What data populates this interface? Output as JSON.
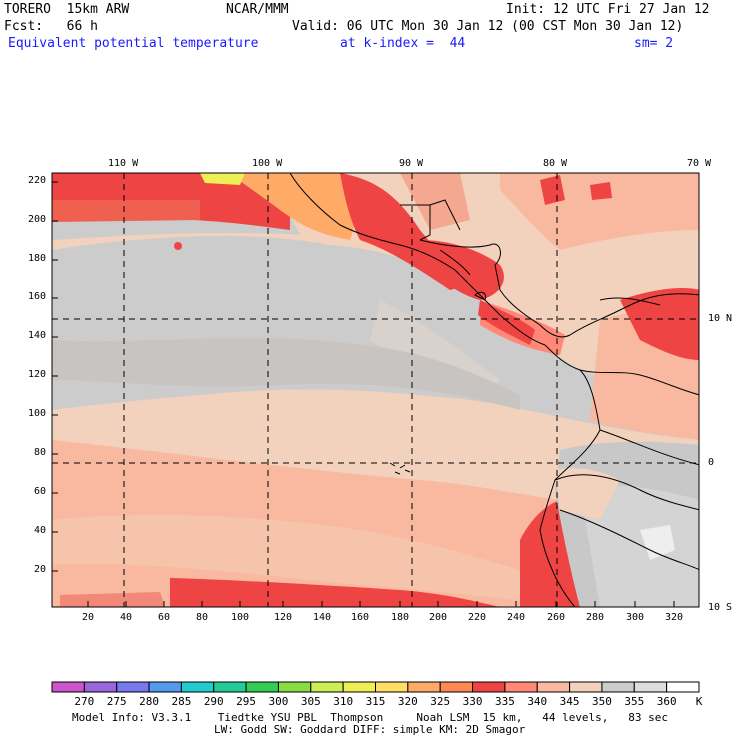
{
  "header": {
    "model": "TORERO  15km ARW",
    "org": "NCAR/MMM",
    "init": "Init: 12 UTC Fri 27 Jan 12",
    "fcst": "Fcst:   66 h",
    "valid": "Valid: 06 UTC Mon 30 Jan 12 (00 CST Mon 30 Jan 12)",
    "field": "Equivalent potential temperature",
    "level": "at k-index =  44",
    "smooth": "sm= 2"
  },
  "map": {
    "lon_labels": [
      "110 W",
      "100 W",
      "90 W",
      "80 W",
      "70 W"
    ],
    "lat_labels": [
      "10 N",
      "0",
      "10 S"
    ],
    "x_ticks": [
      "20",
      "40",
      "60",
      "80",
      "100",
      "120",
      "140",
      "160",
      "180",
      "200",
      "220",
      "240",
      "260",
      "280",
      "300",
      "320"
    ],
    "y_ticks": [
      "220",
      "200",
      "180",
      "160",
      "140",
      "120",
      "100",
      "80",
      "60",
      "40",
      "20"
    ]
  },
  "colorbar": {
    "labels": [
      "270",
      "275",
      "280",
      "285",
      "290",
      "295",
      "300",
      "305",
      "310",
      "315",
      "320",
      "325",
      "330",
      "335",
      "340",
      "345",
      "350",
      "355",
      "360"
    ],
    "unit": "K",
    "colors": [
      "#cc55cc",
      "#9966dd",
      "#7777ee",
      "#5599ee",
      "#22cccc",
      "#22cc99",
      "#33cc55",
      "#88dd44",
      "#ccee55",
      "#eeee55",
      "#ffdd66",
      "#ffaa66",
      "#ff8855",
      "#ee4444",
      "#ff8877",
      "#f9b8a0",
      "#f2d2bc",
      "#cccccc",
      "#dddddd",
      "#ffffff"
    ]
  },
  "footer": {
    "line1": "Model Info: V3.3.1    Tiedtke YSU PBL  Thompson     Noah LSM  15 km,   44 levels,   83 sec",
    "line2": "LW: Godd SW: Goddard DIFF: simple KM: 2D Smagor"
  }
}
